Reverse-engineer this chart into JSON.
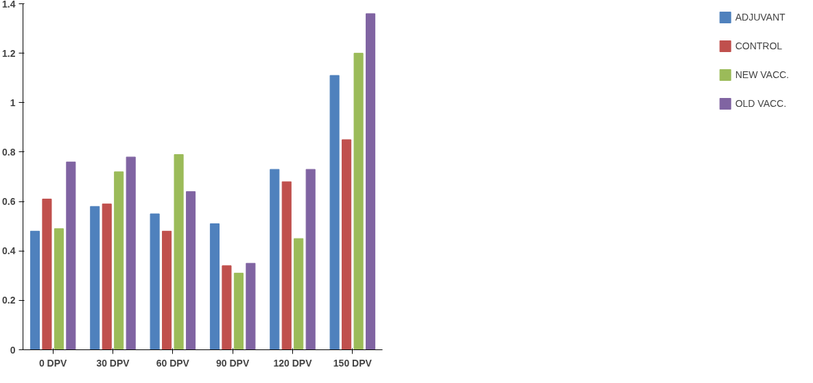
{
  "chart_data": {
    "type": "bar",
    "categories": [
      "0 DPV",
      "30 DPV",
      "60 DPV",
      "90 DPV",
      "120 DPV",
      "150 DPV"
    ],
    "series": [
      {
        "name": "ADJUVANT",
        "color": "#4f81bd",
        "values": [
          0.48,
          0.58,
          0.55,
          0.51,
          0.73,
          1.11
        ]
      },
      {
        "name": "CONTROL",
        "color": "#c0504d",
        "values": [
          0.61,
          0.59,
          0.48,
          0.34,
          0.68,
          0.85
        ]
      },
      {
        "name": "NEW VACC.",
        "color": "#9bbb59",
        "values": [
          0.49,
          0.72,
          0.79,
          0.31,
          0.45,
          1.2
        ]
      },
      {
        "name": "OLD VACC.",
        "color": "#8064a2",
        "values": [
          0.76,
          0.78,
          0.64,
          0.35,
          0.73,
          1.36
        ]
      }
    ],
    "ylim": [
      0,
      1.4
    ],
    "yticks": [
      0,
      0.2,
      0.4,
      0.6,
      0.8,
      {
        "value": 1,
        "label": "1"
      },
      1.2,
      1.4
    ],
    "legend": "right",
    "grid": false
  }
}
